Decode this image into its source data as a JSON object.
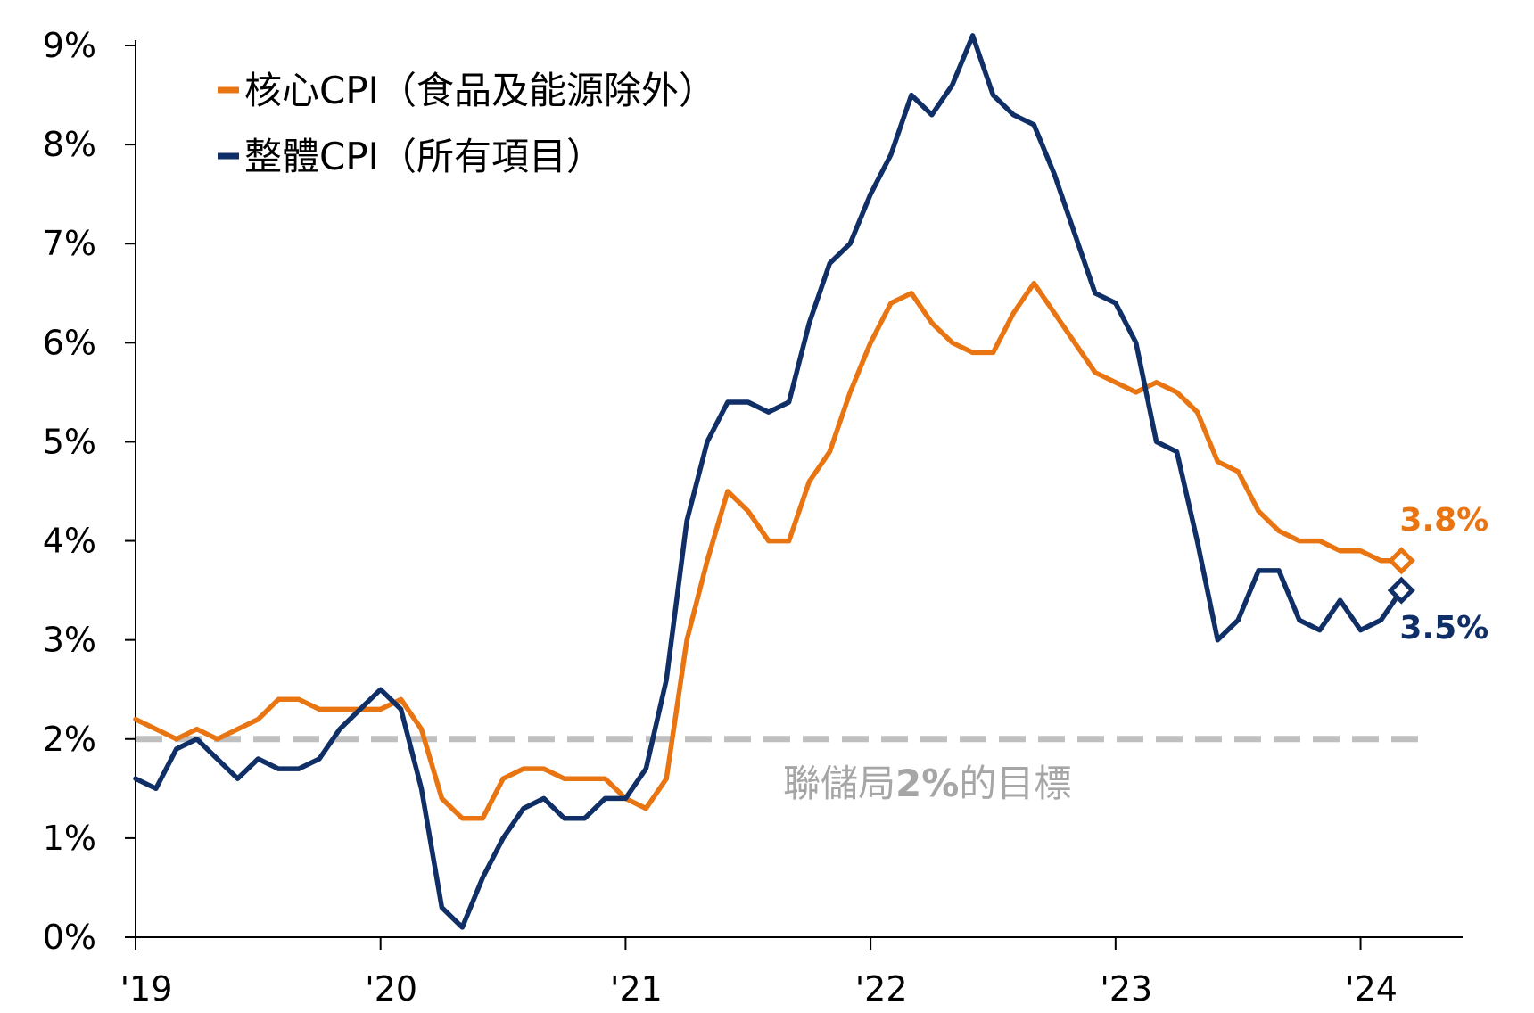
{
  "chart_data": {
    "type": "line",
    "title": "",
    "xlabel": "",
    "ylabel": "",
    "x_ticks": [
      "'19",
      "'20",
      "'21",
      "'22",
      "'23",
      "'24"
    ],
    "x_tick_years": [
      2019,
      2020,
      2021,
      2022,
      2023,
      2024
    ],
    "y_ticks": [
      "0%",
      "1%",
      "2%",
      "3%",
      "4%",
      "5%",
      "6%",
      "7%",
      "8%",
      "9%"
    ],
    "ylim": [
      0,
      9
    ],
    "xlim": [
      "2019-01",
      "2024-06"
    ],
    "grid": false,
    "legend_position": "top-left",
    "series": [
      {
        "name": "核心CPI（食品及能源除外）",
        "color": "#e87511",
        "start": "2019-01",
        "values": [
          2.2,
          2.1,
          2.0,
          2.1,
          2.0,
          2.1,
          2.2,
          2.4,
          2.4,
          2.3,
          2.3,
          2.3,
          2.3,
          2.4,
          2.1,
          1.4,
          1.2,
          1.2,
          1.6,
          1.7,
          1.7,
          1.6,
          1.6,
          1.6,
          1.4,
          1.3,
          1.6,
          3.0,
          3.8,
          4.5,
          4.3,
          4.0,
          4.0,
          4.6,
          4.9,
          5.5,
          6.0,
          6.4,
          6.5,
          6.2,
          6.0,
          5.9,
          5.9,
          6.3,
          6.6,
          6.3,
          6.0,
          5.7,
          5.6,
          5.5,
          5.6,
          5.5,
          5.3,
          4.8,
          4.7,
          4.3,
          4.1,
          4.0,
          4.0,
          3.9,
          3.9,
          3.8,
          3.8
        ]
      },
      {
        "name": "整體CPI（所有項目）",
        "color": "#0f2f66",
        "start": "2019-01",
        "values": [
          1.6,
          1.5,
          1.9,
          2.0,
          1.8,
          1.6,
          1.8,
          1.7,
          1.7,
          1.8,
          2.1,
          2.3,
          2.5,
          2.3,
          1.5,
          0.3,
          0.1,
          0.6,
          1.0,
          1.3,
          1.4,
          1.2,
          1.2,
          1.4,
          1.4,
          1.7,
          2.6,
          4.2,
          5.0,
          5.4,
          5.4,
          5.3,
          5.4,
          6.2,
          6.8,
          7.0,
          7.5,
          7.9,
          8.5,
          8.3,
          8.6,
          9.1,
          8.5,
          8.3,
          8.2,
          7.7,
          7.1,
          6.5,
          6.4,
          6.0,
          5.0,
          4.9,
          4.0,
          3.0,
          3.2,
          3.7,
          3.7,
          3.2,
          3.1,
          3.4,
          3.1,
          3.2,
          3.5
        ]
      }
    ],
    "end_markers": [
      {
        "series": 0,
        "value_label": "3.8%"
      },
      {
        "series": 1,
        "value_label": "3.5%"
      }
    ],
    "reference_line": {
      "value": 2.0,
      "label_prefix": "聯儲局",
      "label_bold": "2%",
      "label_suffix": "的目標",
      "color": "#bfbfbf"
    }
  }
}
